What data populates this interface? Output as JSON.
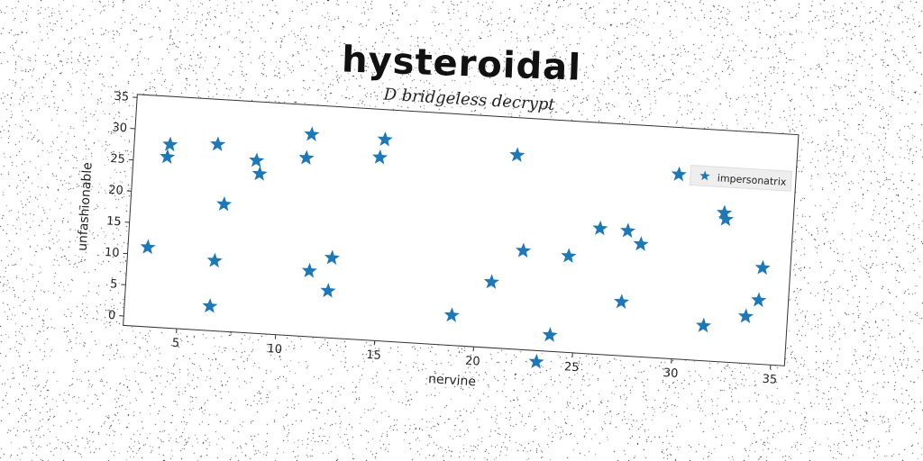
{
  "chart_data": {
    "type": "scatter",
    "title": "hysteroidal",
    "subtitle": "D bridgeless decrypt",
    "xlabel": "nervine",
    "ylabel": "unfashionable",
    "xlim": [
      2.3,
      35.7
    ],
    "ylim": [
      -1.5,
      35.5
    ],
    "xticks": [
      5,
      10,
      15,
      20,
      25,
      30,
      35
    ],
    "yticks": [
      0,
      5,
      10,
      15,
      20,
      25,
      30,
      35
    ],
    "grid": false,
    "legend_position": "top-right",
    "marker": "star",
    "color": "#1f77b4",
    "series": [
      {
        "name": "impersonatrix",
        "points": [
          [
            3.3,
            11.2
          ],
          [
            4.0,
            25.8
          ],
          [
            4.1,
            27.8
          ],
          [
            6.5,
            28.3
          ],
          [
            6.6,
            2.4
          ],
          [
            6.7,
            9.7
          ],
          [
            7.0,
            18.8
          ],
          [
            8.5,
            26.1
          ],
          [
            8.7,
            24.0
          ],
          [
            11.0,
            27.0
          ],
          [
            11.2,
            30.8
          ],
          [
            11.5,
            9.0
          ],
          [
            12.5,
            6.0
          ],
          [
            12.6,
            11.3
          ],
          [
            14.7,
            27.8
          ],
          [
            14.9,
            30.7
          ],
          [
            18.8,
            3.3
          ],
          [
            20.7,
            9.0
          ],
          [
            21.6,
            29.5
          ],
          [
            22.2,
            14.3
          ],
          [
            23.2,
            -3.3
          ],
          [
            23.8,
            1.1
          ],
          [
            24.5,
            13.9
          ],
          [
            26.0,
            18.6
          ],
          [
            27.3,
            7.1
          ],
          [
            27.4,
            18.5
          ],
          [
            28.1,
            16.5
          ],
          [
            29.8,
            28.0
          ],
          [
            31.5,
            4.1
          ],
          [
            32.2,
            22.3
          ],
          [
            32.3,
            21.3
          ],
          [
            33.6,
            6.0
          ],
          [
            34.2,
            8.7
          ],
          [
            34.3,
            13.9
          ]
        ]
      }
    ]
  }
}
